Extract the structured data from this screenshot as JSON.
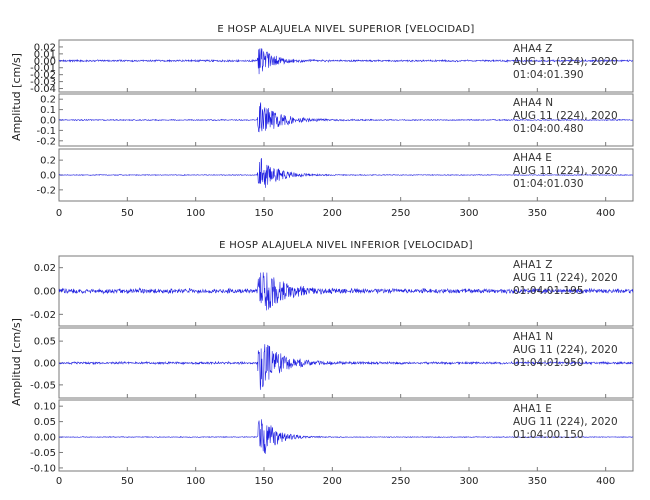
{
  "chart_data": [
    {
      "type": "line",
      "title": "E HOSP ALAJUELA NIVEL SUPERIOR [VELOCIDAD]",
      "ylabel": "Amplitud [cm/s]",
      "xlim": [
        0,
        420
      ],
      "x_ticks": [
        "0",
        "50",
        "100",
        "150",
        "200",
        "250",
        "300",
        "350",
        "400"
      ],
      "series": [
        {
          "channel": "AHA4   Z",
          "date": "AUG 11 (224), 2020",
          "time": "01:04:01.390",
          "ylim": [
            -0.045,
            0.03
          ],
          "y_ticks": [
            "0.02",
            "0.01",
            "0.00",
            "-0.01",
            "-0.02",
            "-0.03",
            "-0.04"
          ],
          "onset": 145,
          "peak": 0.025,
          "noise": 0.001,
          "decay": 10
        },
        {
          "channel": "AHA4   N",
          "date": "AUG 11 (224), 2020",
          "time": "01:04:00.480",
          "ylim": [
            -0.25,
            0.25
          ],
          "y_ticks": [
            "0.2",
            "0.1",
            "0.0",
            "-0.1",
            "-0.2"
          ],
          "onset": 145,
          "peak": 0.2,
          "noise": 0.004,
          "decay": 14
        },
        {
          "channel": "AHA4   E",
          "date": "AUG 11 (224), 2020",
          "time": "01:04:01.030",
          "ylim": [
            -0.35,
            0.35
          ],
          "y_ticks": [
            "0.2",
            "0.0",
            "-0.2"
          ],
          "onset": 145,
          "peak": 0.3,
          "noise": 0.004,
          "decay": 12
        }
      ]
    },
    {
      "type": "line",
      "title": "E HOSP ALAJUELA NIVEL INFERIOR [VELOCIDAD]",
      "ylabel": "Amplitud [cm/s]",
      "xlim": [
        0,
        420
      ],
      "x_ticks": [
        "0",
        "50",
        "100",
        "150",
        "200",
        "250",
        "300",
        "350",
        "400"
      ],
      "series": [
        {
          "channel": "AHA1   Z",
          "date": "AUG 11 (224), 2020",
          "time": "01:04:01.195",
          "ylim": [
            -0.03,
            0.03
          ],
          "y_ticks": [
            "0.02",
            "0.00",
            "-0.02"
          ],
          "onset": 145,
          "peak": 0.027,
          "noise": 0.0015,
          "decay": 14
        },
        {
          "channel": "AHA1   N",
          "date": "AUG 11 (224), 2020",
          "time": "01:04:01.950",
          "ylim": [
            -0.08,
            0.08
          ],
          "y_ticks": [
            "0.05",
            "0.00",
            "-0.05"
          ],
          "onset": 145,
          "peak": 0.07,
          "noise": 0.002,
          "decay": 14
        },
        {
          "channel": "AHA1   E",
          "date": "AUG 11 (224), 2020",
          "time": "01:04:00.150",
          "ylim": [
            -0.11,
            0.12
          ],
          "y_ticks": [
            "0.10",
            "0.05",
            "0.00",
            "-0.05",
            "-0.10"
          ],
          "onset": 145,
          "peak": 0.1,
          "noise": 0.001,
          "decay": 10
        }
      ]
    }
  ],
  "colors": {
    "trace": "#1f1fe0",
    "frame": "#7a7a7a",
    "text": "#222222"
  }
}
